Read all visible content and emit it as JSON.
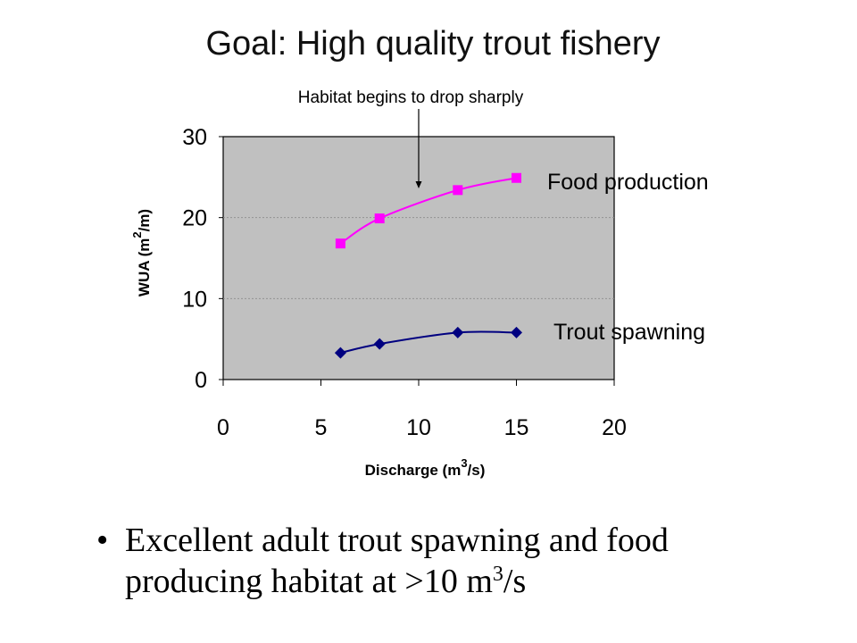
{
  "slide": {
    "title": "Goal: High quality trout fishery",
    "bullet_marker": "•",
    "bullet_text": "Excellent adult trout spawning and food producing habitat at >10 m",
    "bullet_sup": "3",
    "bullet_suffix": "/s"
  },
  "chart_data": {
    "type": "line",
    "xlabel": "Discharge (m",
    "xlabel_sup": "3",
    "xlabel_suffix": "/s)",
    "ylabel": "WUA (m",
    "ylabel_sup": "2",
    "ylabel_suffix": "/m)",
    "xlim": [
      0,
      20
    ],
    "ylim": [
      0,
      30
    ],
    "xticks": [
      0,
      5,
      10,
      15,
      20
    ],
    "yticks": [
      0,
      10,
      20,
      30
    ],
    "grid": "horizontal",
    "plot_background": "#c0c0c0",
    "series": [
      {
        "name": "Food production",
        "color": "#ff00ff",
        "marker": "square",
        "x": [
          6,
          8,
          12,
          15
        ],
        "y": [
          16.8,
          19.9,
          23.4,
          24.9
        ]
      },
      {
        "name": "Trout spawning",
        "color": "#000080",
        "marker": "diamond",
        "x": [
          6,
          8,
          12,
          15
        ],
        "y": [
          3.3,
          4.4,
          5.8,
          5.8
        ]
      }
    ],
    "annotation": {
      "text": "Habitat begins to drop sharply",
      "x": 10,
      "y": 23.6
    }
  }
}
